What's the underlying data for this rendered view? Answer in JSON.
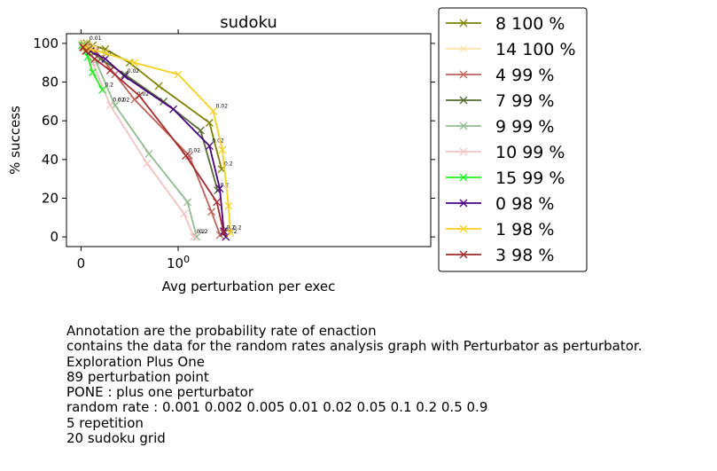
{
  "chart_data": {
    "type": "line",
    "title": "sudoku",
    "xlabel": "Avg perturbation per exec",
    "ylabel": "% success",
    "xscale": "symlog",
    "xticks": [
      {
        "value": 0,
        "label": "0"
      },
      {
        "value": 1,
        "label": "10",
        "sup": "0"
      }
    ],
    "yticks": [
      0,
      20,
      40,
      60,
      80,
      100
    ],
    "ylim": [
      -5,
      105
    ],
    "marker": "x",
    "legend_position": "outside-right",
    "series": [
      {
        "name": "8 100 %",
        "color": "#808000",
        "x": [
          0.03,
          0.06,
          0.12,
          0.25,
          0.5,
          0.8,
          2.1,
          2.8
        ],
        "y": [
          100,
          100,
          99,
          97,
          90,
          78,
          59,
          35
        ],
        "annotations": [
          {
            "i": 1,
            "text": "0.01"
          },
          {
            "i": 7,
            "text": "0.2"
          }
        ]
      },
      {
        "name": "14 100 %",
        "color": "#fde3a7",
        "x": [
          0.02,
          0.04,
          0.08,
          0.15
        ],
        "y": [
          100,
          100,
          99,
          98
        ],
        "annotations": []
      },
      {
        "name": "4 99 %",
        "color": "#c0605a",
        "x": [
          0.02,
          0.06,
          0.15,
          0.35,
          0.55,
          1.3,
          2.2,
          2.7
        ],
        "y": [
          99,
          98,
          96,
          84,
          71,
          42,
          13,
          1
        ],
        "annotations": [
          {
            "i": 4,
            "text": "0.02"
          },
          {
            "i": 7,
            "text": "0.2"
          }
        ]
      },
      {
        "name": "7 99 %",
        "color": "#556b2f",
        "x": [
          0.03,
          0.08,
          0.2,
          0.45,
          0.85,
          1.7,
          2.55
        ],
        "y": [
          99,
          97,
          92,
          84,
          70,
          55,
          24
        ],
        "annotations": [
          {
            "i": 2,
            "text": "0.2"
          },
          {
            "i": 6,
            "text": "0.2"
          }
        ]
      },
      {
        "name": "9 99 %",
        "color": "#8fbc8f",
        "x": [
          0.02,
          0.06,
          0.15,
          0.35,
          0.7,
          1.25,
          1.55
        ],
        "y": [
          99,
          97,
          91,
          68,
          43,
          18,
          0
        ],
        "annotations": [
          {
            "i": 3,
            "text": "0.02"
          },
          {
            "i": 6,
            "text": "0.2"
          }
        ]
      },
      {
        "name": "10 99 %",
        "color": "#f4c2c2",
        "x": [
          0.02,
          0.05,
          0.12,
          0.3,
          0.68,
          1.15,
          1.45
        ],
        "y": [
          99,
          97,
          90,
          68,
          38,
          12,
          0
        ],
        "annotations": [
          {
            "i": 3,
            "text": "0.02"
          },
          {
            "i": 6,
            "text": "0.2"
          }
        ]
      },
      {
        "name": "15 99 %",
        "color": "#22ee22",
        "x": [
          0.01,
          0.03,
          0.07,
          0.12,
          0.22
        ],
        "y": [
          99,
          98,
          93,
          85,
          76
        ],
        "annotations": [
          {
            "i": 4,
            "text": "0.2"
          }
        ]
      },
      {
        "name": "0 98 %",
        "color": "#4b0082",
        "x": [
          0.03,
          0.1,
          0.25,
          0.45,
          0.95,
          2.1,
          2.68,
          2.95,
          3.1
        ],
        "y": [
          98,
          96,
          92,
          83,
          66,
          47,
          25,
          3,
          0
        ],
        "annotations": [
          {
            "i": 3,
            "text": "0.02"
          },
          {
            "i": 5,
            "text": "0.02"
          },
          {
            "i": 8,
            "text": "0.2"
          }
        ]
      },
      {
        "name": "1 98 %",
        "color": "#f4d122",
        "x": [
          0.04,
          0.1,
          0.25,
          0.55,
          1.0,
          2.3,
          2.85,
          3.3,
          3.45
        ],
        "y": [
          98,
          97,
          95,
          90,
          84,
          65,
          45,
          16,
          2
        ],
        "annotations": [
          {
            "i": 5,
            "text": "0.02"
          },
          {
            "i": 8,
            "text": "0.2"
          }
        ]
      },
      {
        "name": "3 98 %",
        "color": "#a52a2a",
        "x": [
          0.02,
          0.05,
          0.14,
          0.3,
          0.6,
          1.2,
          2.5,
          2.95
        ],
        "y": [
          98,
          96,
          92,
          86,
          73,
          42,
          18,
          2
        ],
        "annotations": [
          {
            "i": 5,
            "text": "0.02"
          },
          {
            "i": 7,
            "text": "0.2"
          }
        ]
      }
    ]
  },
  "caption": [
    "Annotation are the probability rate of enaction",
    "contains the data for the random rates analysis graph with Perturbator as perturbator.",
    "Exploration Plus One",
    "89 perturbation point",
    "PONE : plus one perturbator",
    "random rate : 0.001 0.002 0.005 0.01 0.02 0.05 0.1 0.2 0.5 0.9",
    "5 repetition",
    "20 sudoku grid"
  ]
}
